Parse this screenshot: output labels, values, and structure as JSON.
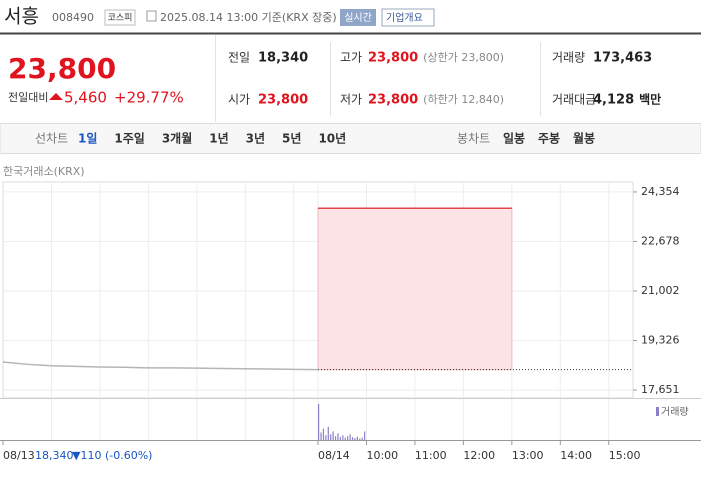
{
  "header": {
    "name": "서흥",
    "code": "008490",
    "market": "코스피",
    "timestamp": "2025.08.14 13:00 기준(KRX 장중)",
    "realtime": "실시간",
    "company_info": "기업개요"
  },
  "quote": {
    "price": "23,800",
    "change_label": "전일대비",
    "change": "5,460",
    "change_rate": "+29.77%",
    "stats": [
      [
        {
          "label": "전일",
          "value": "18,340"
        },
        {
          "label": "고가",
          "value": "23,800",
          "note": "(상한가 23,800)"
        },
        {
          "label": "거래량",
          "value": "173,463"
        }
      ],
      [
        {
          "label": "시가",
          "value": "23,800"
        },
        {
          "label": "저가",
          "value": "23,800",
          "note": "(하한가 12,840)"
        },
        {
          "label": "거래대금",
          "value": "4,128",
          "unit": "백만"
        }
      ]
    ]
  },
  "tabs": {
    "line_label": "선차트",
    "line": [
      "1일",
      "1주일",
      "3개월",
      "1년",
      "3년",
      "5년",
      "10년"
    ],
    "selected": 0,
    "candle_label": "봉차트",
    "candle": [
      "일봉",
      "주봉",
      "월봉"
    ]
  },
  "chart_data": {
    "type": "line",
    "source": "한국거래소(KRX)",
    "xlim": [
      0,
      780
    ],
    "xticks": [
      {
        "value": 0,
        "label": "08/13"
      },
      {
        "value": 390,
        "label": "08/14"
      },
      {
        "value": 450,
        "label": "10:00"
      },
      {
        "value": 510,
        "label": "11:00"
      },
      {
        "value": 570,
        "label": "12:00"
      },
      {
        "value": 630,
        "label": "13:00"
      },
      {
        "value": 690,
        "label": "14:00"
      },
      {
        "value": 750,
        "label": "15:00"
      }
    ],
    "xgrid": [
      60,
      120,
      180,
      240,
      300,
      360,
      390,
      450,
      510,
      570,
      630,
      690,
      750
    ],
    "ylim": [
      17380,
      24690
    ],
    "yticks": [
      {
        "value": 17651,
        "label": "17,651"
      },
      {
        "value": 19326,
        "label": "19,326"
      },
      {
        "value": 21002,
        "label": "21,002"
      },
      {
        "value": 22678,
        "label": "22,678"
      },
      {
        "value": 24354,
        "label": "24,354"
      }
    ],
    "prev_close": 18340,
    "prev_summary": {
      "close": "18,340",
      "change": "▼110 (-0.60%)"
    },
    "series": [
      {
        "color": "#b5b5b5",
        "x": [
          0,
          30,
          60,
          90,
          120,
          150,
          180,
          210,
          240,
          270,
          300,
          330,
          360,
          390
        ],
        "values": [
          18600,
          18520,
          18470,
          18450,
          18430,
          18420,
          18400,
          18400,
          18390,
          18380,
          18370,
          18360,
          18350,
          18340
        ]
      },
      {
        "color": "#e0414a",
        "fill": "#fde4e7",
        "x": [
          390,
          630
        ],
        "values": [
          23800,
          23800
        ]
      }
    ],
    "volume": {
      "label": "거래량",
      "color": "#8b80c8",
      "ylim": [
        0,
        40000
      ],
      "x": [
        390,
        393,
        396,
        399,
        402,
        405,
        408,
        411,
        414,
        417,
        420,
        423,
        426,
        429,
        432,
        435,
        438,
        441,
        444,
        447
      ],
      "values": [
        38000,
        8000,
        12000,
        5000,
        14000,
        6000,
        9000,
        4000,
        7000,
        3000,
        5000,
        2500,
        4000,
        6000,
        3000,
        2000,
        3500,
        1500,
        2500,
        9000
      ]
    }
  }
}
